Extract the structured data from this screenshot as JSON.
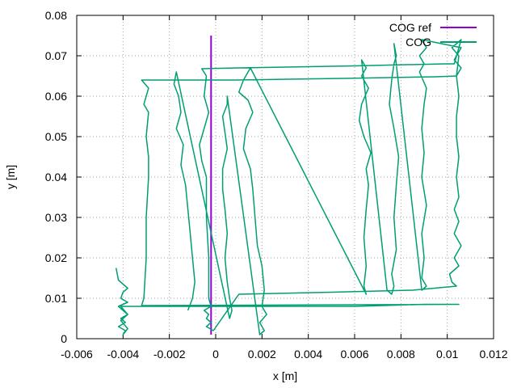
{
  "chart_data": {
    "type": "line",
    "xlabel": "x [m]",
    "ylabel": "y [m]",
    "xlim": [
      -0.006,
      0.012
    ],
    "ylim": [
      0,
      0.08
    ],
    "xticks": [
      "-0.006",
      "-0.004",
      "-0.002",
      "0",
      "0.002",
      "0.004",
      "0.006",
      "0.008",
      "0.01",
      "0.012"
    ],
    "yticks": [
      "0",
      "0.01",
      "0.02",
      "0.03",
      "0.04",
      "0.05",
      "0.06",
      "0.07",
      "0.08"
    ],
    "grid": true,
    "legend_position": "top-right",
    "series": [
      {
        "name": "COG ref",
        "color": "#9400d3",
        "points": [
          [
            -0.0002,
            0.001
          ],
          [
            -0.0002,
            0.075
          ]
        ]
      },
      {
        "name": "COG",
        "color": "#009e73",
        "points": [
          [
            -0.0043,
            0.0175
          ],
          [
            -0.0042,
            0.0145
          ],
          [
            -0.004,
            0.0135
          ],
          [
            -0.0038,
            0.0125
          ],
          [
            -0.004,
            0.0115
          ],
          [
            -0.0041,
            0.01
          ],
          [
            -0.0038,
            0.009
          ],
          [
            -0.0042,
            0.008
          ],
          [
            -0.004,
            0.007
          ],
          [
            -0.0038,
            0.006
          ],
          [
            -0.0041,
            0.005
          ],
          [
            -0.0039,
            0.004
          ],
          [
            -0.0042,
            0.003
          ],
          [
            -0.0039,
            0.002
          ],
          [
            -0.004,
            0.001
          ],
          [
            -0.0038,
            0.0025
          ],
          [
            -0.0041,
            0.0045
          ],
          [
            -0.0038,
            0.006
          ],
          [
            -0.0041,
            0.008
          ],
          [
            0.0021,
            0.008
          ],
          [
            0.006,
            0.008
          ],
          [
            0.009,
            0.0085
          ],
          [
            0.0105,
            0.0085
          ],
          [
            0.0104,
            0.0085
          ],
          [
            -0.0032,
            0.0082
          ],
          [
            -0.0031,
            0.01
          ],
          [
            -0.003,
            0.02
          ],
          [
            -0.003,
            0.03
          ],
          [
            -0.0029,
            0.04
          ],
          [
            -0.0029,
            0.045
          ],
          [
            -0.003,
            0.05
          ],
          [
            -0.0029,
            0.056
          ],
          [
            -0.0031,
            0.058
          ],
          [
            -0.003,
            0.06
          ],
          [
            -0.0029,
            0.062
          ],
          [
            -0.0032,
            0.064
          ],
          [
            0.0009,
            0.064
          ],
          [
            0.0055,
            0.0644
          ],
          [
            0.0095,
            0.0648
          ],
          [
            0.0104,
            0.065
          ],
          [
            0.0105,
            0.07
          ],
          [
            0.0102,
            0.072
          ],
          [
            0.0106,
            0.074
          ],
          [
            0.0103,
            0.068
          ],
          [
            0.0099,
            0.068
          ],
          [
            0.006,
            0.0675
          ],
          [
            0.001,
            0.067
          ],
          [
            -0.0006,
            0.0668
          ],
          [
            -0.0004,
            0.065
          ],
          [
            -0.0005,
            0.06
          ],
          [
            -0.0003,
            0.056
          ],
          [
            -0.0005,
            0.052
          ],
          [
            -0.0007,
            0.048
          ],
          [
            -0.0006,
            0.044
          ],
          [
            -0.0004,
            0.04
          ],
          [
            -0.0004,
            0.03
          ],
          [
            -0.0003,
            0.02
          ],
          [
            -0.0003,
            0.01
          ],
          [
            -0.0002,
            0.008
          ],
          [
            -0.0005,
            0.007
          ],
          [
            -0.0003,
            0.006
          ],
          [
            -0.0004,
            0.005
          ],
          [
            -0.0002,
            0.004
          ],
          [
            -0.0004,
            0.003
          ],
          [
            -0.0001,
            0.002
          ],
          [
            0.001,
            0.011
          ],
          [
            0.005,
            0.0115
          ],
          [
            0.0085,
            0.012
          ],
          [
            0.0104,
            0.013
          ],
          [
            0.0102,
            0.014
          ],
          [
            0.0101,
            0.016
          ],
          [
            0.0105,
            0.018
          ],
          [
            0.0103,
            0.02
          ],
          [
            0.0106,
            0.023
          ],
          [
            0.0103,
            0.026
          ],
          [
            0.0105,
            0.029
          ],
          [
            0.0103,
            0.032
          ],
          [
            0.0105,
            0.035
          ],
          [
            0.0104,
            0.04
          ],
          [
            0.0105,
            0.045
          ],
          [
            0.0104,
            0.05
          ],
          [
            0.0104,
            0.055
          ],
          [
            0.0105,
            0.06
          ],
          [
            0.0104,
            0.065
          ],
          [
            0.0106,
            0.067
          ],
          [
            0.0103,
            0.069
          ],
          [
            0.0106,
            0.072
          ],
          [
            0.0089,
            0.074
          ],
          [
            0.0091,
            0.072
          ],
          [
            0.0088,
            0.07
          ],
          [
            0.009,
            0.068
          ],
          [
            0.0088,
            0.066
          ],
          [
            0.0091,
            0.062
          ],
          [
            0.009,
            0.058
          ],
          [
            0.0089,
            0.052
          ],
          [
            0.009,
            0.046
          ],
          [
            0.0089,
            0.04
          ],
          [
            0.0091,
            0.033
          ],
          [
            0.0089,
            0.026
          ],
          [
            0.009,
            0.02
          ],
          [
            0.0089,
            0.015
          ],
          [
            0.0091,
            0.013
          ],
          [
            0.0089,
            0.012
          ],
          [
            0.0077,
            0.073
          ],
          [
            0.0078,
            0.07
          ],
          [
            0.0077,
            0.068
          ],
          [
            0.0076,
            0.064
          ],
          [
            0.0075,
            0.058
          ],
          [
            0.0077,
            0.052
          ],
          [
            0.0079,
            0.045
          ],
          [
            0.0078,
            0.038
          ],
          [
            0.0077,
            0.03
          ],
          [
            0.0078,
            0.022
          ],
          [
            0.0076,
            0.016
          ],
          [
            0.0077,
            0.013
          ],
          [
            0.0076,
            0.011
          ],
          [
            0.0074,
            0.012
          ],
          [
            0.0063,
            0.069
          ],
          [
            0.0065,
            0.067
          ],
          [
            0.0063,
            0.065
          ],
          [
            0.0066,
            0.062
          ],
          [
            0.0063,
            0.058
          ],
          [
            0.0062,
            0.054
          ],
          [
            0.0064,
            0.05
          ],
          [
            0.0067,
            0.046
          ],
          [
            0.0065,
            0.042
          ],
          [
            0.0066,
            0.038
          ],
          [
            0.0065,
            0.032
          ],
          [
            0.0064,
            0.025
          ],
          [
            0.0065,
            0.018
          ],
          [
            0.0064,
            0.013
          ],
          [
            0.0065,
            0.011
          ],
          [
            0.0015,
            0.067
          ],
          [
            0.0012,
            0.064
          ],
          [
            0.001,
            0.061
          ],
          [
            0.0014,
            0.059
          ],
          [
            0.0016,
            0.056
          ],
          [
            0.0013,
            0.052
          ],
          [
            0.0012,
            0.047
          ],
          [
            0.0015,
            0.042
          ],
          [
            0.0016,
            0.037
          ],
          [
            0.0017,
            0.03
          ],
          [
            0.0018,
            0.023
          ],
          [
            0.002,
            0.018
          ],
          [
            0.0021,
            0.012
          ],
          [
            0.002,
            0.008
          ],
          [
            0.0022,
            0.006
          ],
          [
            0.0019,
            0.004
          ],
          [
            0.0021,
            0.002
          ],
          [
            0.0019,
            0.001
          ],
          [
            0.0005,
            0.06
          ],
          [
            0.0005,
            0.058
          ],
          [
            0.0003,
            0.055
          ],
          [
            0.0004,
            0.051
          ],
          [
            0.0005,
            0.047
          ],
          [
            0.0003,
            0.042
          ],
          [
            0.0003,
            0.037
          ],
          [
            0.0004,
            0.032
          ],
          [
            0.0005,
            0.026
          ],
          [
            0.0004,
            0.02
          ],
          [
            0.0005,
            0.014
          ],
          [
            0.0006,
            0.01
          ],
          [
            0.0007,
            0.007
          ],
          [
            0.0006,
            0.005
          ],
          [
            -0.0017,
            0.066
          ],
          [
            -0.0018,
            0.063
          ],
          [
            -0.0016,
            0.06
          ],
          [
            -0.0015,
            0.056
          ],
          [
            -0.0017,
            0.052
          ],
          [
            -0.0014,
            0.048
          ],
          [
            -0.0015,
            0.043
          ],
          [
            -0.0013,
            0.038
          ],
          [
            -0.0012,
            0.032
          ],
          [
            -0.0011,
            0.026
          ],
          [
            -0.001,
            0.02
          ],
          [
            -0.0009,
            0.014
          ],
          [
            -0.001,
            0.01
          ],
          [
            -0.0011,
            0.0085
          ],
          [
            -0.0012,
            0.007
          ]
        ]
      }
    ]
  }
}
